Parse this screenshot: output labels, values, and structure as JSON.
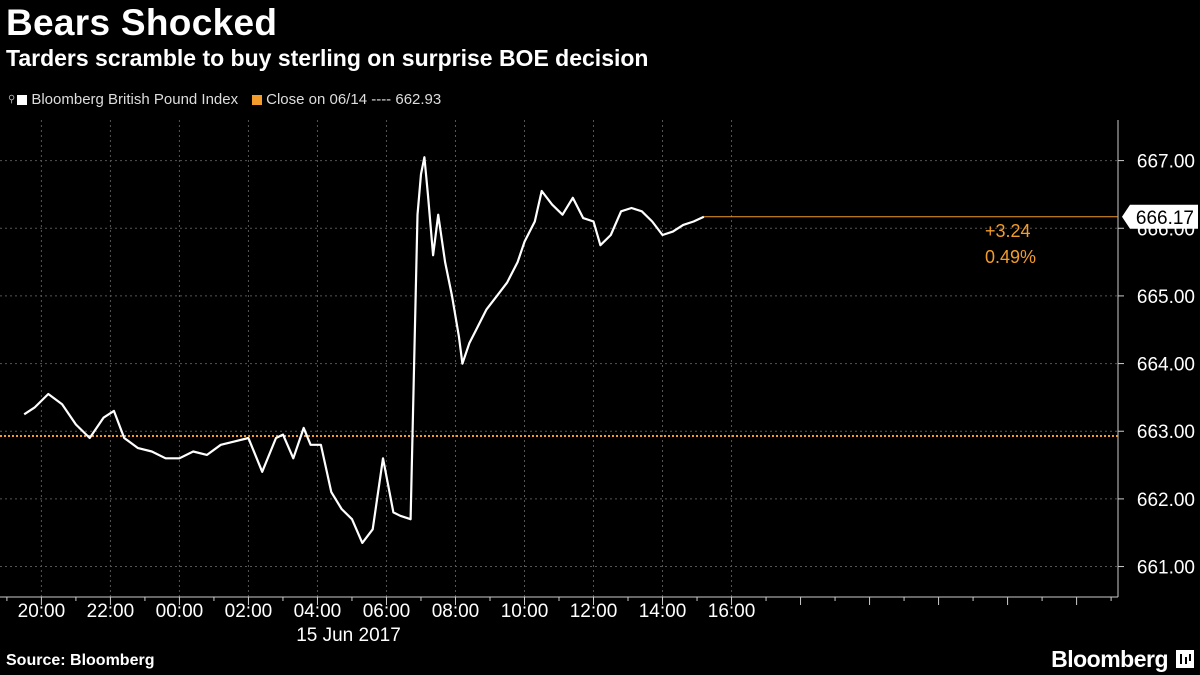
{
  "header": {
    "title": "Bears Shocked",
    "subtitle": "Tarders scramble to buy sterling on surprise BOE decision"
  },
  "legend": {
    "series_label": "Bloomberg British Pound Index",
    "close_label": "Close on 06/14 ---- 662.93"
  },
  "footer": {
    "source": "Source: Bloomberg",
    "brand": "Bloomberg"
  },
  "colors": {
    "background": "#000000",
    "series": "#ffffff",
    "close_line": "#f39b2b",
    "grid": "#555555"
  },
  "chart_data": {
    "type": "line",
    "title": "Bears Shocked",
    "subtitle": "Tarders scramble to buy sterling on surprise BOE decision",
    "date_label": "15 Jun 2017",
    "x_ticks": [
      "20:00",
      "22:00",
      "00:00",
      "02:00",
      "04:00",
      "06:00",
      "08:00",
      "10:00",
      "12:00",
      "14:00",
      "16:00"
    ],
    "y_ticks": [
      "661.00",
      "662.00",
      "663.00",
      "664.00",
      "665.00",
      "666.00",
      "667.00"
    ],
    "ylim": [
      660.55,
      667.6
    ],
    "xlim_hours": [
      -5.2,
      27.2
    ],
    "grid": true,
    "reference_line": {
      "label": "Close on 06/14",
      "value": 662.93
    },
    "last_value": "666.17",
    "change_abs": "+3.24",
    "change_pct": "0.49%",
    "series": [
      {
        "name": "Bloomberg British Pound Index",
        "x": [
          -4.5,
          -4.2,
          -3.8,
          -3.4,
          -3.0,
          -2.6,
          -2.2,
          -1.9,
          -1.6,
          -1.2,
          -0.8,
          -0.4,
          0.0,
          0.4,
          0.8,
          1.2,
          1.6,
          2.0,
          2.4,
          2.8,
          3.0,
          3.3,
          3.6,
          3.8,
          4.1,
          4.4,
          4.7,
          5.0,
          5.3,
          5.6,
          5.9,
          6.2,
          6.4,
          6.7,
          6.9,
          7.0,
          7.1,
          7.2,
          7.35,
          7.5,
          7.7,
          7.9,
          8.1,
          8.2,
          8.4,
          8.6,
          8.9,
          9.2,
          9.5,
          9.8,
          10.0,
          10.3,
          10.5,
          10.8,
          11.1,
          11.4,
          11.7,
          12.0,
          12.2,
          12.5,
          12.8,
          13.1,
          13.4,
          13.7,
          14.0,
          14.3,
          14.6,
          14.9,
          15.2
        ],
        "y": [
          663.25,
          663.35,
          663.55,
          663.4,
          663.1,
          662.9,
          663.2,
          663.3,
          662.9,
          662.75,
          662.7,
          662.6,
          662.6,
          662.7,
          662.65,
          662.8,
          662.85,
          662.9,
          662.4,
          662.9,
          662.95,
          662.6,
          663.05,
          662.8,
          662.8,
          662.1,
          661.85,
          661.7,
          661.35,
          661.55,
          662.6,
          661.8,
          661.75,
          661.7,
          666.2,
          666.8,
          667.05,
          666.5,
          665.6,
          666.2,
          665.5,
          665.0,
          664.4,
          664.0,
          664.3,
          664.5,
          664.8,
          665.0,
          665.2,
          665.5,
          665.8,
          666.1,
          666.55,
          666.35,
          666.2,
          666.45,
          666.15,
          666.1,
          665.75,
          665.9,
          666.25,
          666.3,
          666.25,
          666.1,
          665.9,
          665.95,
          666.05,
          666.1,
          666.17
        ]
      }
    ]
  }
}
